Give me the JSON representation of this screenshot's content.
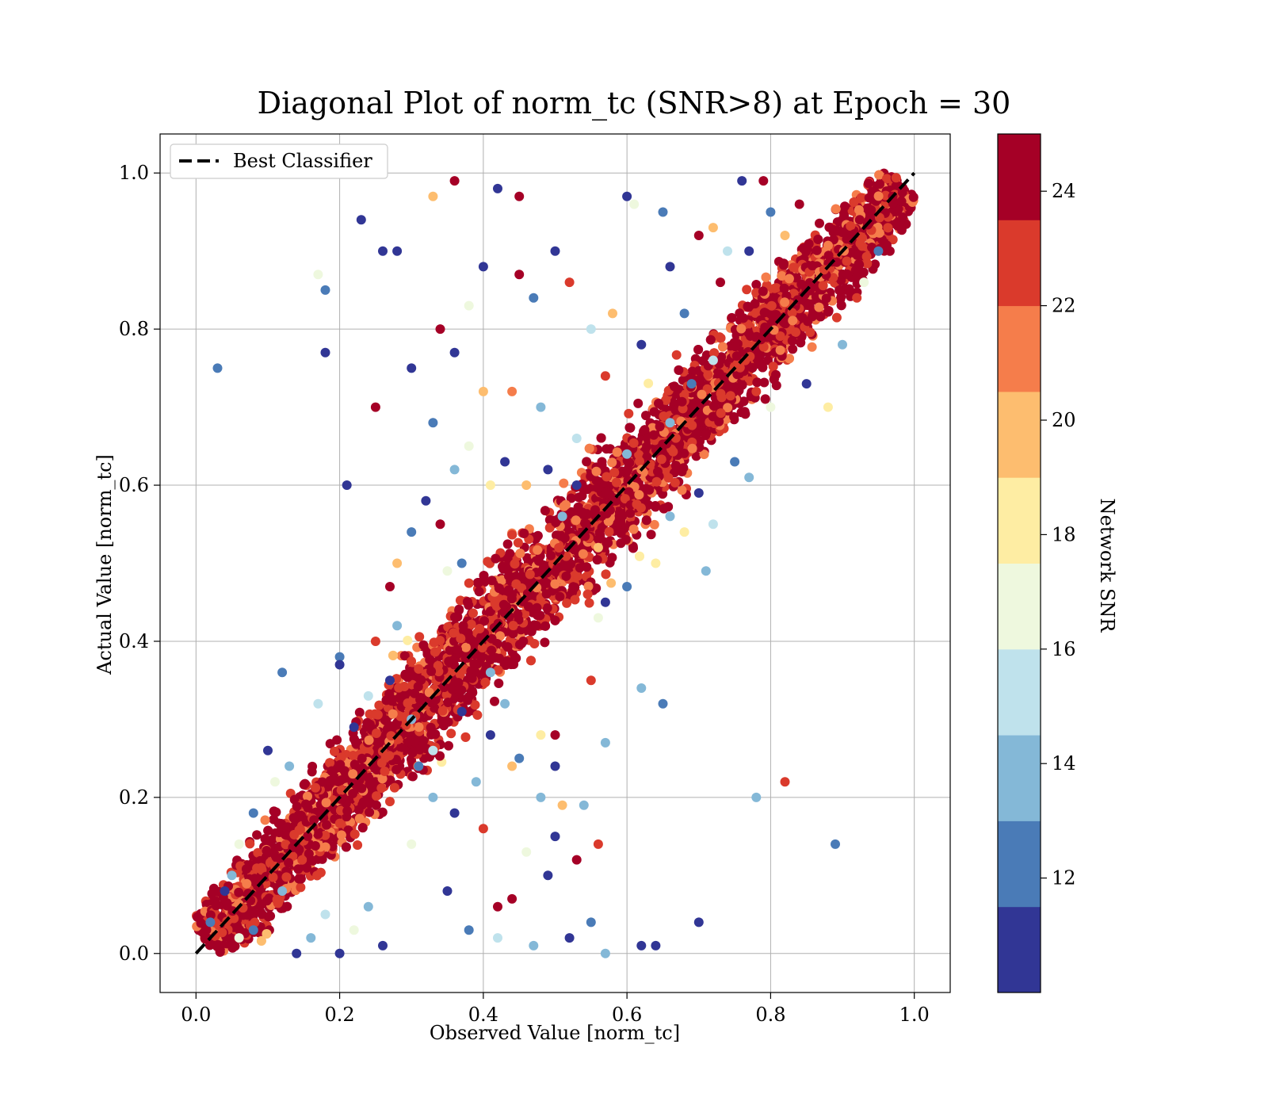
{
  "chart_data": {
    "type": "scatter",
    "title": "Diagonal Plot of norm_tc (SNR>8) at Epoch = 30",
    "xlabel": "Observed Value [norm_tc]",
    "ylabel": "Actual Value [norm_tc]",
    "xlim": [
      -0.05,
      1.05
    ],
    "ylim": [
      -0.05,
      1.05
    ],
    "xticks": [
      "0.0",
      "0.2",
      "0.4",
      "0.6",
      "0.8",
      "1.0"
    ],
    "yticks": [
      "0.0",
      "0.2",
      "0.4",
      "0.6",
      "0.8",
      "1.0"
    ],
    "grid": true,
    "legend": {
      "position": "top-left",
      "entries": [
        {
          "label": "Best Classifier",
          "style": "dashed",
          "color": "#000000"
        }
      ]
    },
    "reference_line": {
      "from": [
        0,
        0
      ],
      "to": [
        1,
        1
      ],
      "label": "Best Classifier"
    },
    "colorbar": {
      "label": "Network SNR",
      "range": [
        10,
        25
      ],
      "ticks": [
        "12",
        "14",
        "16",
        "18",
        "20",
        "22",
        "24"
      ],
      "colors": [
        "#313695",
        "#4575b4",
        "#74add1",
        "#abd9e9",
        "#e0f3f8",
        "#fee090",
        "#fdae61",
        "#f46d43",
        "#d73027",
        "#a50026"
      ],
      "bins": [
        "#313695",
        "#4a7bb7",
        "#84b8d7",
        "#bfe2ec",
        "#eef8de",
        "#feeda3",
        "#fdbd6f",
        "#f57d4b",
        "#da3a2c",
        "#a50026"
      ]
    },
    "series": [
      {
        "points": [
          [
            0.03,
            0.75,
            11.5
          ],
          [
            0.18,
            0.77,
            10.5
          ],
          [
            0.18,
            0.85,
            12.5
          ],
          [
            0.17,
            0.87,
            17
          ],
          [
            0.23,
            0.94,
            10.5
          ],
          [
            0.26,
            0.9,
            10.5
          ],
          [
            0.28,
            0.9,
            10.5
          ],
          [
            0.25,
            0.7,
            24
          ],
          [
            0.34,
            0.8,
            24
          ],
          [
            0.36,
            0.99,
            24
          ],
          [
            0.33,
            0.97,
            19
          ],
          [
            0.82,
            0.22,
            23
          ],
          [
            0.89,
            0.14,
            12
          ],
          [
            0.78,
            0.2,
            14
          ],
          [
            0.7,
            0.04,
            10.5
          ],
          [
            0.65,
            0.32,
            12
          ],
          [
            0.62,
            0.34,
            13
          ],
          [
            0.12,
            0.36,
            11.5
          ],
          [
            0.21,
            0.6,
            10.5
          ],
          [
            0.53,
            0.12,
            24
          ],
          [
            0.56,
            0.14,
            23
          ],
          [
            0.28,
            0.5,
            20
          ],
          [
            0.32,
            0.58,
            10.5
          ],
          [
            0.71,
            0.49,
            14
          ],
          [
            0.72,
            0.55,
            15
          ],
          [
            0.68,
            0.54,
            18
          ],
          [
            0.57,
            0.27,
            14
          ],
          [
            0.55,
            0.35,
            23
          ],
          [
            0.42,
            0.06,
            24
          ],
          [
            0.44,
            0.07,
            24
          ],
          [
            0.6,
            0.97,
            11
          ],
          [
            0.65,
            0.95,
            12
          ],
          [
            0.7,
            0.92,
            24
          ],
          [
            0.72,
            0.93,
            19
          ],
          [
            0.76,
            0.99,
            10.5
          ],
          [
            0.79,
            0.99,
            24
          ],
          [
            0.45,
            0.97,
            24
          ],
          [
            0.42,
            0.98,
            10.5
          ],
          [
            0.47,
            0.84,
            12
          ],
          [
            0.5,
            0.9,
            10.5
          ],
          [
            0.52,
            0.86,
            23
          ],
          [
            0.55,
            0.8,
            15
          ],
          [
            0.58,
            0.82,
            20
          ],
          [
            0.4,
            0.88,
            10.5
          ],
          [
            0.45,
            0.87,
            24
          ],
          [
            0.38,
            0.83,
            16
          ],
          [
            0.36,
            0.77,
            10.5
          ],
          [
            0.4,
            0.72,
            19
          ],
          [
            0.44,
            0.72,
            21
          ],
          [
            0.48,
            0.7,
            13
          ],
          [
            0.3,
            0.75,
            10.5
          ],
          [
            0.33,
            0.68,
            12
          ],
          [
            0.36,
            0.62,
            14
          ],
          [
            0.38,
            0.65,
            16
          ],
          [
            0.41,
            0.6,
            18
          ],
          [
            0.43,
            0.63,
            10.5
          ],
          [
            0.3,
            0.54,
            12
          ],
          [
            0.34,
            0.55,
            24
          ],
          [
            0.27,
            0.47,
            24
          ],
          [
            0.25,
            0.4,
            22
          ],
          [
            0.27,
            0.35,
            10.5
          ],
          [
            0.3,
            0.3,
            14
          ],
          [
            0.2,
            0.38,
            12
          ],
          [
            0.17,
            0.32,
            15
          ],
          [
            0.2,
            0.37,
            10.5
          ],
          [
            0.45,
            0.25,
            12
          ],
          [
            0.48,
            0.2,
            14
          ],
          [
            0.5,
            0.15,
            10.5
          ],
          [
            0.46,
            0.13,
            16
          ],
          [
            0.4,
            0.16,
            23
          ],
          [
            0.36,
            0.18,
            11
          ],
          [
            0.33,
            0.2,
            14
          ],
          [
            0.3,
            0.14,
            17
          ],
          [
            0.35,
            0.08,
            10.5
          ],
          [
            0.38,
            0.03,
            12
          ],
          [
            0.42,
            0.02,
            15
          ],
          [
            0.47,
            0.01,
            13
          ],
          [
            0.52,
            0.02,
            10.5
          ],
          [
            0.55,
            0.04,
            12
          ],
          [
            0.57,
            0.0,
            14
          ],
          [
            0.64,
            0.01,
            10.5
          ],
          [
            0.62,
            0.01,
            10.5
          ],
          [
            0.49,
            0.1,
            11
          ],
          [
            0.51,
            0.19,
            20
          ],
          [
            0.5,
            0.24,
            10.5
          ],
          [
            0.54,
            0.19,
            13
          ],
          [
            0.5,
            0.28,
            24
          ],
          [
            0.48,
            0.28,
            18
          ],
          [
            0.43,
            0.32,
            13
          ],
          [
            0.41,
            0.28,
            11
          ],
          [
            0.44,
            0.24,
            19
          ],
          [
            0.39,
            0.22,
            14
          ],
          [
            0.61,
            0.96,
            16
          ],
          [
            0.66,
            0.88,
            11
          ],
          [
            0.68,
            0.82,
            12
          ],
          [
            0.62,
            0.78,
            10.5
          ],
          [
            0.57,
            0.74,
            23
          ],
          [
            0.53,
            0.66,
            15
          ],
          [
            0.49,
            0.62,
            11
          ],
          [
            0.46,
            0.6,
            20
          ],
          [
            0.73,
            0.86,
            24
          ],
          [
            0.74,
            0.9,
            15
          ],
          [
            0.77,
            0.9,
            11
          ],
          [
            0.8,
            0.95,
            12
          ],
          [
            0.82,
            0.92,
            19
          ],
          [
            0.84,
            0.96,
            24
          ],
          [
            0.78,
            0.72,
            22
          ],
          [
            0.8,
            0.7,
            17
          ],
          [
            0.75,
            0.63,
            12
          ],
          [
            0.77,
            0.61,
            14
          ],
          [
            0.7,
            0.59,
            11
          ],
          [
            0.66,
            0.56,
            13
          ],
          [
            0.64,
            0.5,
            18
          ],
          [
            0.6,
            0.47,
            12
          ],
          [
            0.57,
            0.45,
            10.5
          ],
          [
            0.56,
            0.43,
            16
          ],
          [
            0.85,
            0.73,
            10.5
          ],
          [
            0.88,
            0.7,
            18
          ],
          [
            0.9,
            0.78,
            14
          ],
          [
            0.93,
            0.86,
            16
          ],
          [
            0.95,
            0.9,
            12
          ],
          [
            0.92,
            0.84,
            22
          ],
          [
            0.97,
            0.97,
            24
          ],
          [
            0.12,
            0.08,
            14
          ],
          [
            0.08,
            0.03,
            12
          ],
          [
            0.06,
            0.02,
            16
          ],
          [
            0.14,
            0.0,
            11
          ],
          [
            0.16,
            0.02,
            13
          ],
          [
            0.2,
            0.0,
            10.5
          ],
          [
            0.22,
            0.03,
            17
          ],
          [
            0.24,
            0.06,
            13
          ],
          [
            0.26,
            0.01,
            11
          ],
          [
            0.18,
            0.05,
            15
          ],
          [
            0.1,
            0.26,
            11
          ],
          [
            0.13,
            0.24,
            14
          ],
          [
            0.08,
            0.18,
            12
          ],
          [
            0.11,
            0.22,
            17
          ],
          [
            0.05,
            0.1,
            13
          ],
          [
            0.04,
            0.08,
            11
          ],
          [
            0.06,
            0.14,
            16
          ],
          [
            0.02,
            0.04,
            12
          ],
          [
            0.56,
            0.52,
            20
          ],
          [
            0.62,
            0.62,
            21
          ],
          [
            0.53,
            0.6,
            11
          ],
          [
            0.51,
            0.56,
            13
          ],
          [
            0.44,
            0.46,
            24
          ],
          [
            0.37,
            0.5,
            12
          ],
          [
            0.35,
            0.49,
            17
          ],
          [
            0.28,
            0.42,
            14
          ],
          [
            0.24,
            0.33,
            15
          ],
          [
            0.22,
            0.29,
            11
          ],
          [
            0.31,
            0.24,
            12
          ],
          [
            0.33,
            0.26,
            15
          ],
          [
            0.37,
            0.31,
            11
          ],
          [
            0.41,
            0.36,
            13
          ],
          [
            0.58,
            0.58,
            24
          ],
          [
            0.6,
            0.64,
            13
          ],
          [
            0.66,
            0.68,
            14
          ],
          [
            0.69,
            0.73,
            12
          ],
          [
            0.72,
            0.76,
            15
          ]
        ]
      }
    ]
  }
}
